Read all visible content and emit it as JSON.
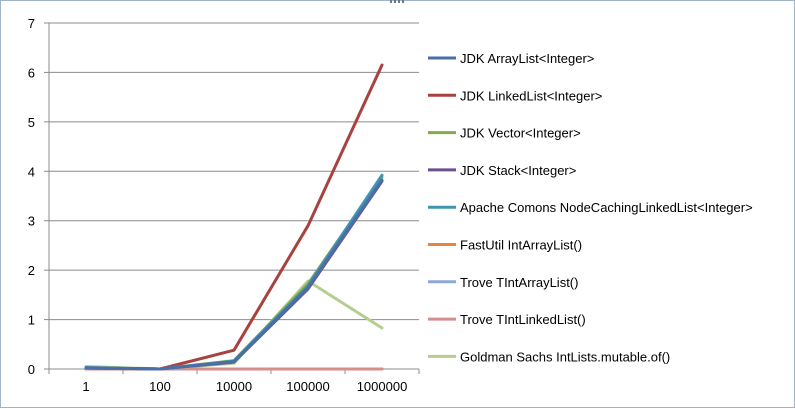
{
  "chart_data": {
    "type": "line",
    "categories": [
      "1",
      "100",
      "10000",
      "100000",
      "1000000"
    ],
    "ylim": [
      0,
      7
    ],
    "yticks": [
      0,
      1,
      2,
      3,
      4,
      5,
      6,
      7
    ],
    "grid": true,
    "legend_position": "right",
    "series": [
      {
        "name": "JDK ArrayList<Integer>",
        "color": "#4a6fa8",
        "values": [
          0.02,
          0.0,
          0.15,
          1.65,
          3.82
        ]
      },
      {
        "name": "JDK LinkedList<Integer>",
        "color": "#a8423f",
        "values": [
          0.02,
          0.0,
          0.38,
          2.9,
          6.15
        ]
      },
      {
        "name": "JDK Vector<Integer>",
        "color": "#86a84a",
        "values": [
          0.02,
          0.0,
          0.17,
          1.72,
          3.88
        ]
      },
      {
        "name": "JDK Stack<Integer>",
        "color": "#6b4f8e",
        "values": [
          0.02,
          0.0,
          0.14,
          1.62,
          3.8
        ]
      },
      {
        "name": "Apache Comons NodeCachingLinkedList<Integer>",
        "color": "#3d96ae",
        "values": [
          0.03,
          0.0,
          0.16,
          1.68,
          3.92
        ]
      },
      {
        "name": "FastUtil IntArrayList()",
        "color": "#e8853e",
        "values": [
          0.0,
          0.0,
          0.0,
          0.0,
          0.0
        ]
      },
      {
        "name": "Trove TIntArrayList()",
        "color": "#8ea8d4",
        "values": [
          0.0,
          0.0,
          0.0,
          0.0,
          0.0
        ]
      },
      {
        "name": "Trove TIntLinkedList()",
        "color": "#d48e8d",
        "values": [
          0.0,
          0.0,
          0.0,
          0.0,
          0.0
        ]
      },
      {
        "name": "Goldman Sachs IntLists.mutable.of()",
        "color": "#b5ce8f",
        "values": [
          0.05,
          0.0,
          0.12,
          1.78,
          0.83
        ]
      }
    ]
  }
}
